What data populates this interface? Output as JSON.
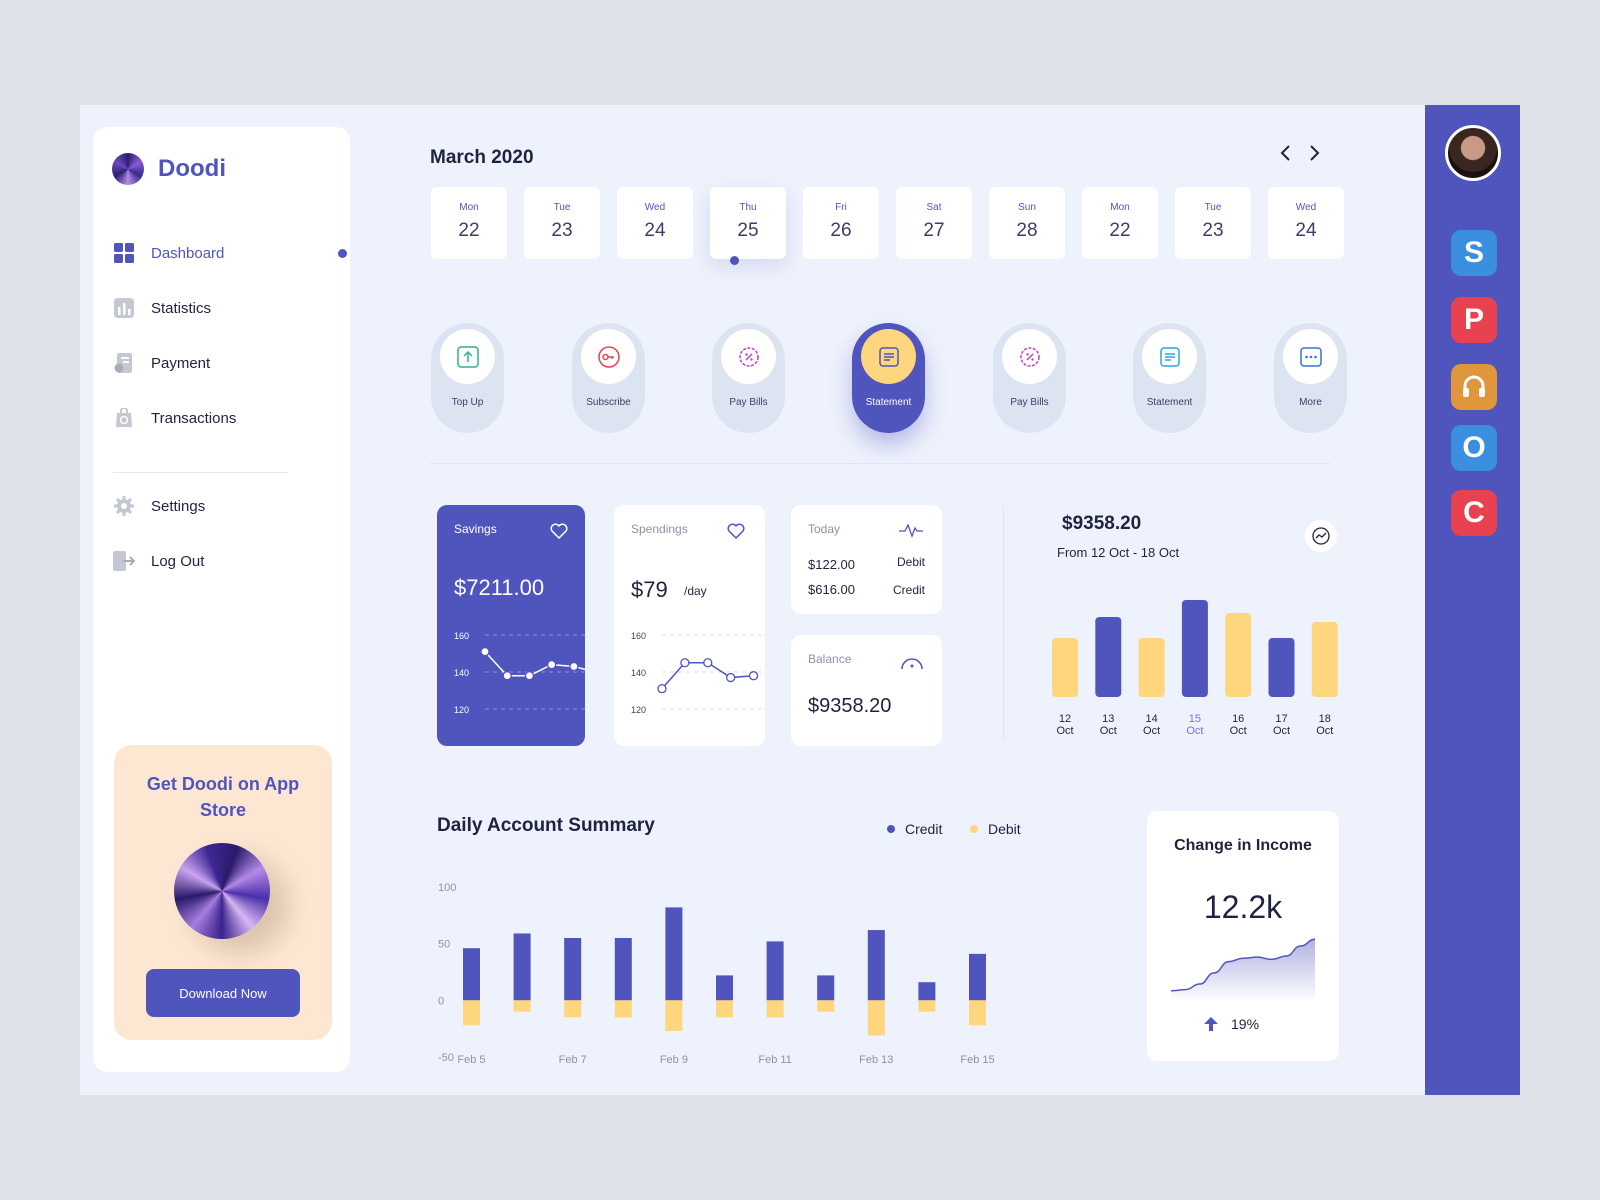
{
  "app": {
    "name": "Doodi"
  },
  "sidebar": {
    "items": [
      {
        "label": "Dashboard",
        "icon": "dashboard-icon"
      },
      {
        "label": "Statistics",
        "icon": "statistics-icon"
      },
      {
        "label": "Payment",
        "icon": "payment-icon"
      },
      {
        "label": "Transactions",
        "icon": "transactions-icon"
      },
      {
        "label": "Settings",
        "icon": "settings-icon"
      },
      {
        "label": "Log Out",
        "icon": "logout-icon"
      }
    ],
    "promo": {
      "title": "Get Doodi on App Store",
      "button": "Download Now"
    }
  },
  "calendar": {
    "month": "March 2020",
    "days": [
      {
        "day": "Mon",
        "num": "22"
      },
      {
        "day": "Tue",
        "num": "23"
      },
      {
        "day": "Wed",
        "num": "24"
      },
      {
        "day": "Thu",
        "num": "25"
      },
      {
        "day": "Fri",
        "num": "26"
      },
      {
        "day": "Sat",
        "num": "27"
      },
      {
        "day": "Sun",
        "num": "28"
      },
      {
        "day": "Mon",
        "num": "22"
      },
      {
        "day": "Tue",
        "num": "23"
      },
      {
        "day": "Wed",
        "num": "24"
      }
    ],
    "selected_index": 3
  },
  "actions": [
    {
      "label": "Top Up",
      "icon": "upload-icon"
    },
    {
      "label": "Subscribe",
      "icon": "key-icon"
    },
    {
      "label": "Pay Bills",
      "icon": "percent-badge-icon"
    },
    {
      "label": "Statement",
      "icon": "document-icon"
    },
    {
      "label": "Pay Bills",
      "icon": "percent-badge-icon"
    },
    {
      "label": "Statement",
      "icon": "document-icon"
    },
    {
      "label": "More",
      "icon": "more-icon"
    }
  ],
  "cards": {
    "savings": {
      "title": "Savings",
      "value": "$7211.00",
      "icon": "heart-icon"
    },
    "spendings": {
      "title": "Spendings",
      "value": "$79",
      "unit": "/day",
      "icon": "heart-icon"
    },
    "today": {
      "title": "Today",
      "debit_value": "$122.00",
      "debit_label": "Debit",
      "credit_value": "$616.00",
      "credit_label": "Credit",
      "icon": "pulse-icon"
    },
    "balance": {
      "title": "Balance",
      "value": "$9358.20",
      "icon": "gauge-icon"
    }
  },
  "weekly": {
    "value": "$9358.20",
    "range": "From 12 Oct - 18 Oct",
    "icon": "trend-icon"
  },
  "summary": {
    "title": "Daily Account Summary",
    "legend": [
      {
        "label": "Credit",
        "color": "#5055bd"
      },
      {
        "label": "Debit",
        "color": "#fdd67d"
      }
    ]
  },
  "income": {
    "title": "Change in Income",
    "value": "12.2k",
    "change": "19%",
    "icon": "arrow-up-icon"
  },
  "right_apps": [
    {
      "letter": "S",
      "color": "#3b8fe0",
      "icon": "s-app-icon"
    },
    {
      "letter": "P",
      "color": "#e8414f",
      "icon": "p-app-icon"
    },
    {
      "letter": "",
      "color": "#e0963a",
      "icon": "headphones-app-icon"
    },
    {
      "letter": "O",
      "color": "#3b8fe0",
      "icon": "o-app-icon"
    },
    {
      "letter": "C",
      "color": "#e8414f",
      "icon": "c-app-icon"
    }
  ],
  "chart_data": [
    {
      "type": "line",
      "name": "savings-sparkline",
      "y_ticks": [
        "160",
        "140",
        "120"
      ],
      "ylim": [
        120,
        160
      ],
      "values": [
        151,
        138,
        138,
        144,
        143
      ],
      "dashed_tail": true
    },
    {
      "type": "line",
      "name": "spendings-sparkline",
      "y_ticks": [
        "160",
        "140",
        "120"
      ],
      "ylim": [
        120,
        160
      ],
      "values": [
        131,
        145,
        145,
        137,
        138
      ]
    },
    {
      "type": "bar",
      "name": "weekly-bars",
      "categories": [
        "12 Oct",
        "13 Oct",
        "14 Oct",
        "15 Oct",
        "16 Oct",
        "17 Oct",
        "18 Oct"
      ],
      "values": [
        59,
        80,
        59,
        97,
        84,
        59,
        75
      ],
      "colors": [
        "#fdd67d",
        "#5055bd",
        "#fdd67d",
        "#5055bd",
        "#fdd67d",
        "#5055bd",
        "#fdd67d"
      ],
      "highlight_index": 3
    },
    {
      "type": "bar",
      "name": "daily-account-summary",
      "stacked": true,
      "y_ticks": [
        "100",
        "50",
        "0",
        "-50"
      ],
      "ylim": [
        -50,
        100
      ],
      "x_labels": [
        "Feb 5",
        "Feb 7",
        "Feb 9",
        "Feb 11",
        "Feb 13",
        "Feb 15"
      ],
      "series": [
        {
          "name": "Credit",
          "values": [
            46,
            59,
            55,
            55,
            82,
            22,
            52,
            22,
            62,
            16,
            41
          ]
        },
        {
          "name": "Debit",
          "values": [
            -22,
            -10,
            -15,
            -15,
            -27,
            -15,
            -15,
            -10,
            -31,
            -10,
            -22
          ]
        }
      ]
    },
    {
      "type": "area",
      "name": "income-sparkline",
      "values": [
        2,
        3,
        8,
        18,
        28,
        31,
        32,
        30,
        33,
        42,
        48
      ]
    }
  ]
}
